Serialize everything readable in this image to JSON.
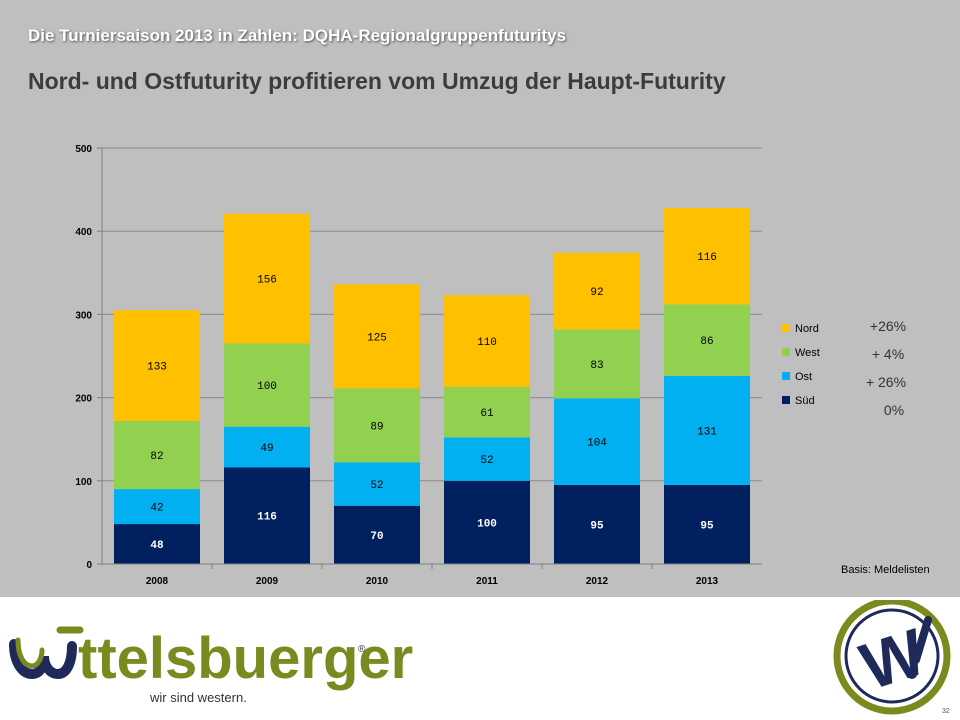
{
  "header": {
    "supertitle": "Die Turniersaison  2013 in Zahlen: DQHA-Regionalgruppenfuturitys",
    "title": "Nord- und Ostfuturity profitieren vom Umzug der Haupt-Futurity"
  },
  "chart_data": {
    "type": "bar",
    "stacked": true,
    "categories": [
      "2008",
      "2009",
      "2010",
      "2011",
      "2012",
      "2013"
    ],
    "series": [
      {
        "name": "Süd",
        "color": "#002060",
        "values": [
          48,
          116,
          70,
          100,
          95,
          95
        ]
      },
      {
        "name": "Ost",
        "color": "#00b0f0",
        "values": [
          42,
          49,
          52,
          52,
          104,
          131
        ]
      },
      {
        "name": "West",
        "color": "#92d050",
        "values": [
          82,
          100,
          89,
          61,
          83,
          86
        ]
      },
      {
        "name": "Nord",
        "color": "#ffc000",
        "values": [
          133,
          156,
          125,
          110,
          92,
          116
        ]
      }
    ],
    "y_ticks": [
      "0",
      "100",
      "200",
      "300",
      "400",
      "500"
    ],
    "ylim": [
      0,
      500
    ],
    "grid": true,
    "legend_position": "right",
    "changes": [
      {
        "series": "Nord",
        "label": "+26%"
      },
      {
        "series": "West",
        "label": "+  4%"
      },
      {
        "series": "Ost",
        "label": "+  26%"
      },
      {
        "series": "Süd",
        "label": "0%"
      }
    ]
  },
  "footer": {
    "source": "Basis: Meldelisten",
    "brand": "ttelsbuerger",
    "brand_mark": "W",
    "registered": "®",
    "slogan": "wir sind western.",
    "page_number": "32"
  },
  "colors": {
    "slide_background": "#bfbfbf",
    "brand_green": "#7a8a1e",
    "brand_navy": "#1f2a5a",
    "label_dark": "#000000",
    "label_light": "#ffffff"
  }
}
